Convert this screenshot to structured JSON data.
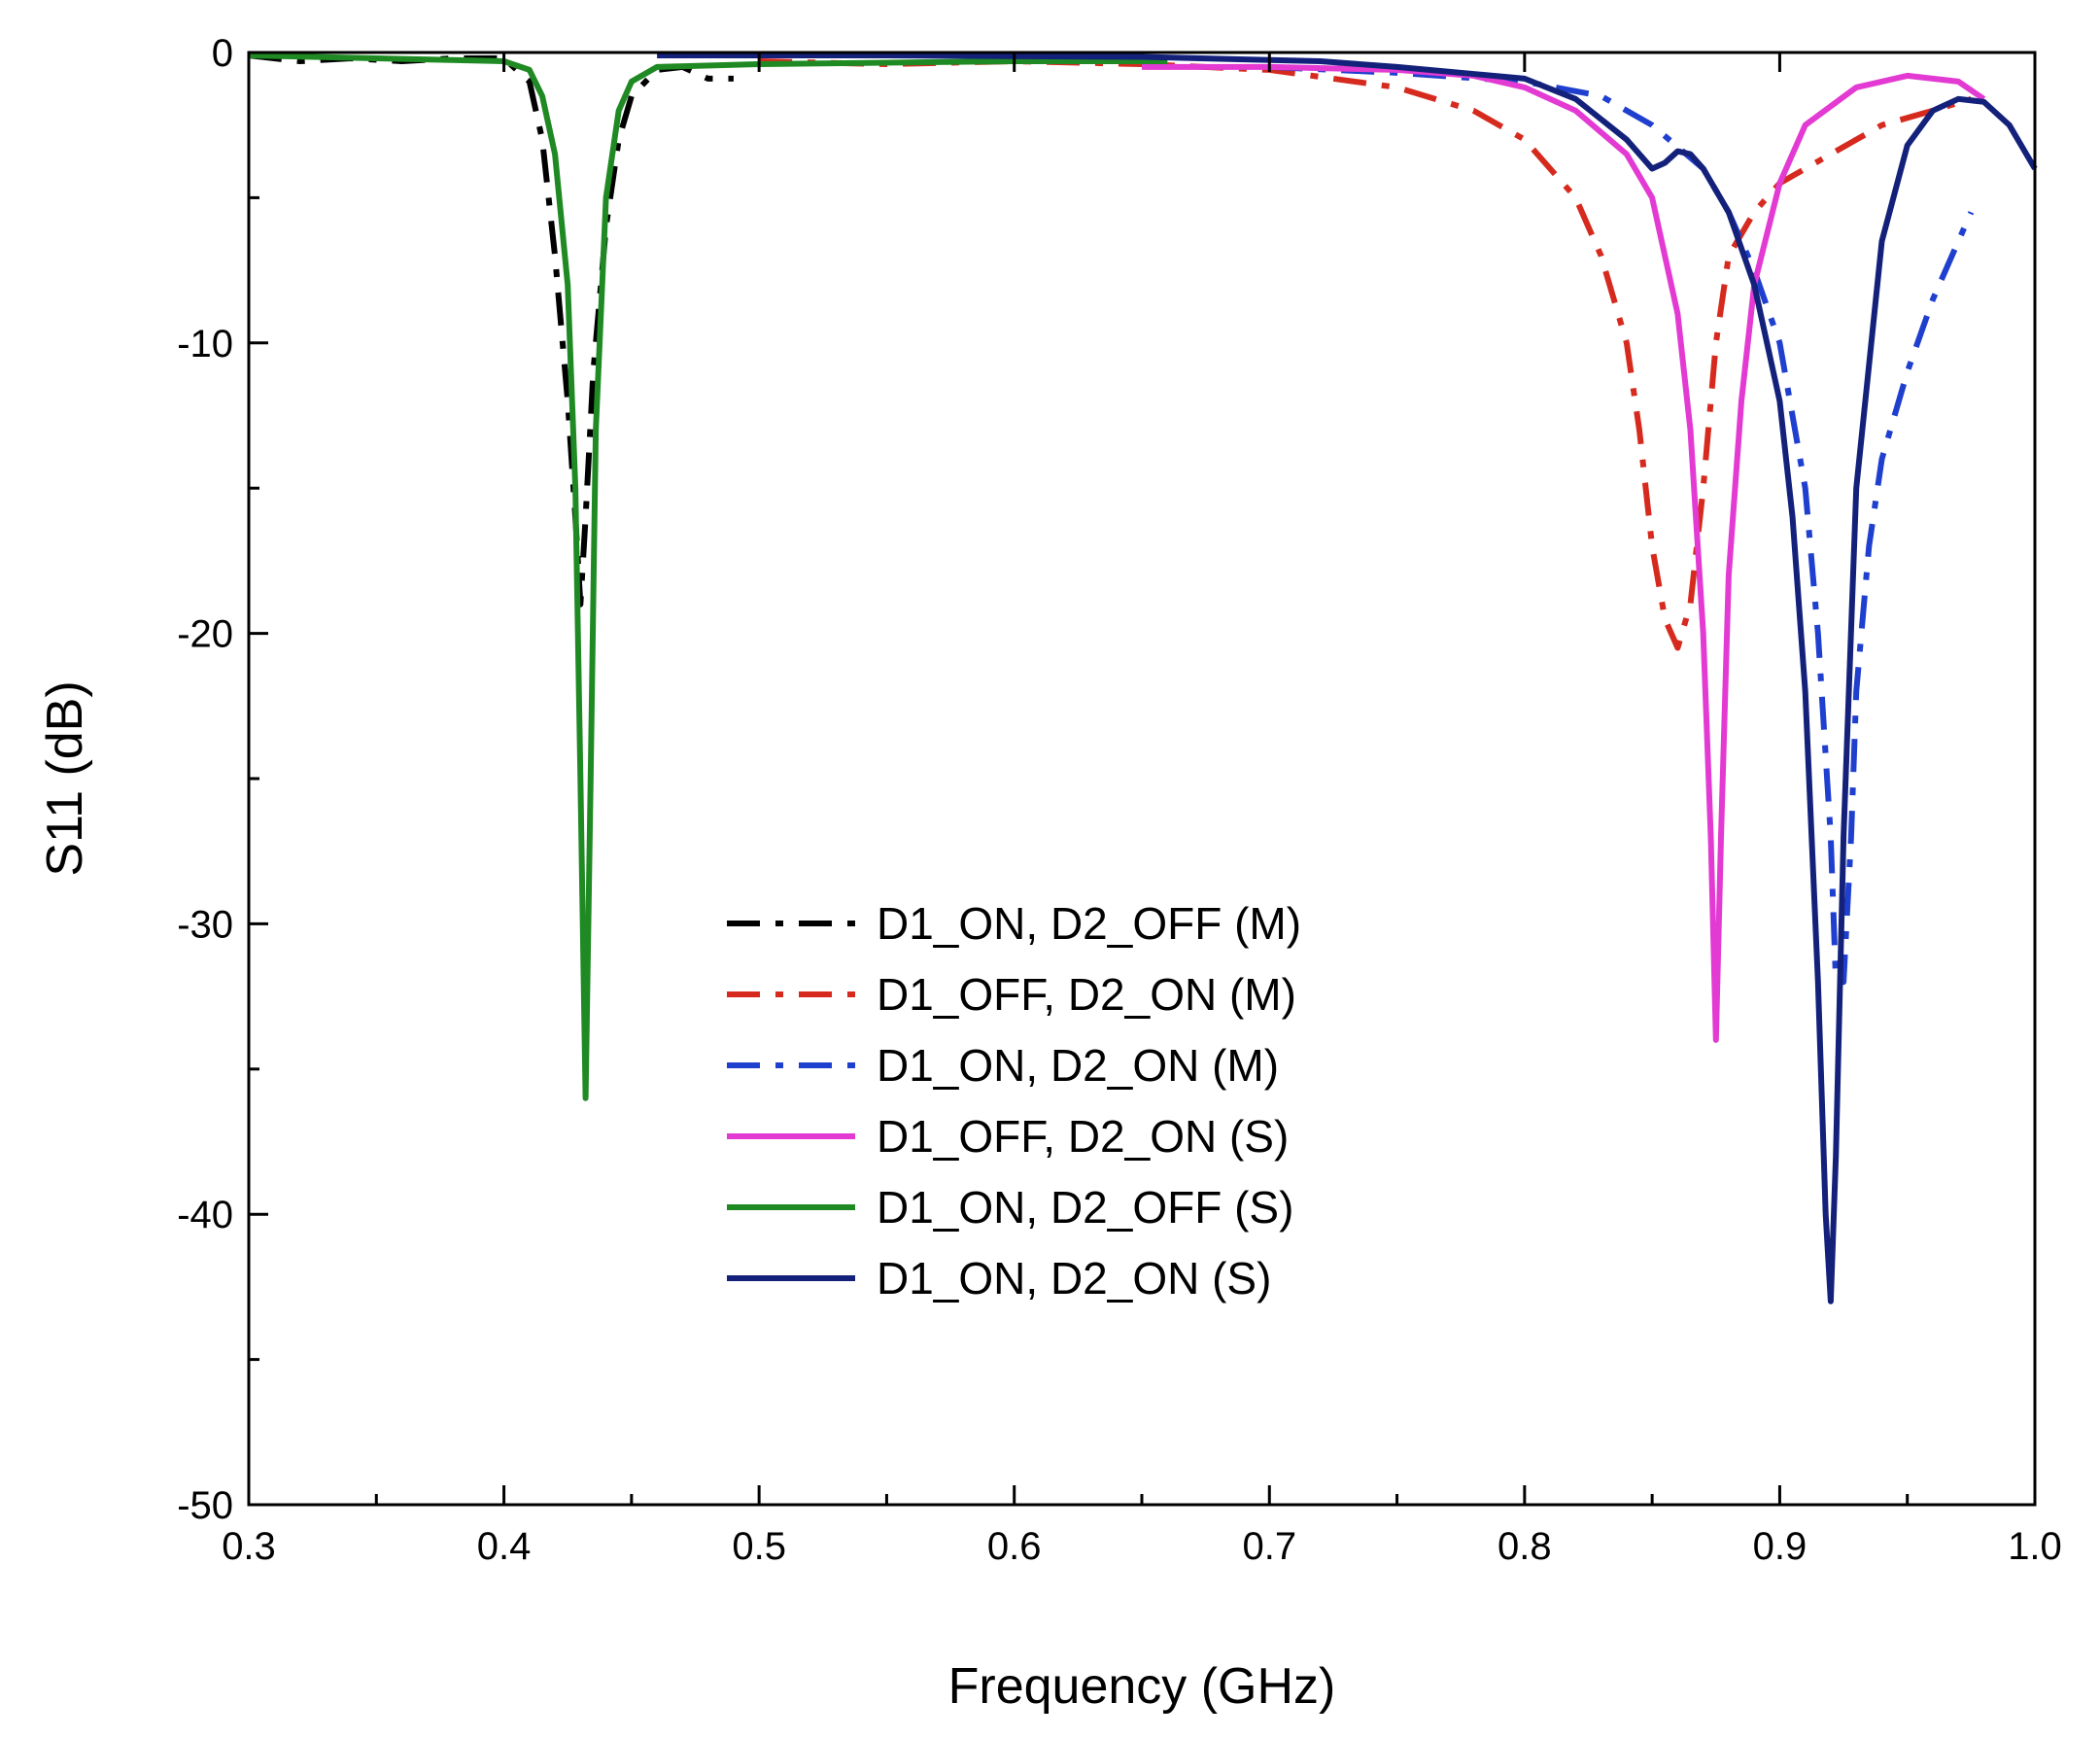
{
  "chart_data": {
    "type": "line",
    "title": "",
    "xlabel": "Frequency (GHz)",
    "ylabel": "S11 (dB)",
    "xlim": [
      0.3,
      1.0
    ],
    "ylim": [
      -50,
      0
    ],
    "x_ticks": [
      0.3,
      0.4,
      0.5,
      0.6,
      0.7,
      0.8,
      0.9,
      1.0
    ],
    "x_tick_labels": [
      "0.3",
      "0.4",
      "0.5",
      "0.6",
      "0.7",
      "0.8",
      "0.9",
      "1.0"
    ],
    "y_ticks": [
      0,
      -10,
      -20,
      -30,
      -40,
      -50
    ],
    "y_tick_labels": [
      "0",
      "-10",
      "-20",
      "-30",
      "-40",
      "-50"
    ],
    "grid": false,
    "legend_position": "center",
    "series": [
      {
        "name": "D1_ON, D2_OFF (M)",
        "color": "#000000",
        "style": "dashdot",
        "x": [
          0.3,
          0.32,
          0.34,
          0.36,
          0.38,
          0.4,
          0.41,
          0.415,
          0.42,
          0.425,
          0.428,
          0.43,
          0.432,
          0.435,
          0.44,
          0.445,
          0.45,
          0.46,
          0.47,
          0.48,
          0.49
        ],
        "y": [
          -0.1,
          -0.3,
          -0.2,
          -0.3,
          -0.2,
          -0.2,
          -1.0,
          -3.0,
          -7.0,
          -12.0,
          -16.0,
          -19.0,
          -16.0,
          -11.0,
          -6.0,
          -3.0,
          -1.5,
          -0.6,
          -0.5,
          -0.9,
          -0.9
        ]
      },
      {
        "name": "D1_OFF, D2_ON (M)",
        "color": "#d62a1e",
        "style": "dashdot",
        "x": [
          0.5,
          0.55,
          0.6,
          0.65,
          0.7,
          0.75,
          0.78,
          0.8,
          0.82,
          0.83,
          0.84,
          0.845,
          0.85,
          0.855,
          0.86,
          0.865,
          0.87,
          0.875,
          0.88,
          0.89,
          0.9,
          0.92,
          0.94,
          0.96,
          0.975
        ],
        "y": [
          -0.3,
          -0.4,
          -0.3,
          -0.4,
          -0.6,
          -1.2,
          -2.0,
          -3.0,
          -5.0,
          -7.0,
          -10.0,
          -13.0,
          -17.0,
          -19.5,
          -20.5,
          -19.0,
          -15.0,
          -10.0,
          -7.0,
          -5.5,
          -4.5,
          -3.5,
          -2.5,
          -2.0,
          -1.6
        ]
      },
      {
        "name": "D1_ON, D2_ON (M)",
        "color": "#1f3fcf",
        "style": "dashdot",
        "x": [
          0.7,
          0.75,
          0.8,
          0.83,
          0.85,
          0.87,
          0.88,
          0.89,
          0.9,
          0.91,
          0.915,
          0.92,
          0.922,
          0.925,
          0.928,
          0.93,
          0.935,
          0.94,
          0.95,
          0.96,
          0.97,
          0.975
        ],
        "y": [
          -0.5,
          -0.7,
          -1.0,
          -1.5,
          -2.5,
          -4.0,
          -5.5,
          -7.5,
          -10.0,
          -15.0,
          -20.0,
          -27.0,
          -32.0,
          -32.0,
          -27.0,
          -22.0,
          -17.0,
          -14.0,
          -11.0,
          -8.5,
          -6.5,
          -5.5
        ]
      },
      {
        "name": "D1_OFF, D2_ON (S)",
        "color": "#e23ad2",
        "style": "solid",
        "x": [
          0.65,
          0.7,
          0.75,
          0.78,
          0.8,
          0.82,
          0.84,
          0.85,
          0.86,
          0.865,
          0.87,
          0.873,
          0.875,
          0.877,
          0.88,
          0.885,
          0.89,
          0.9,
          0.91,
          0.93,
          0.95,
          0.97,
          0.98
        ],
        "y": [
          -0.5,
          -0.5,
          -0.6,
          -0.8,
          -1.2,
          -2.0,
          -3.5,
          -5.0,
          -9.0,
          -13.0,
          -20.0,
          -27.0,
          -34.0,
          -27.0,
          -18.0,
          -12.0,
          -8.0,
          -4.5,
          -2.5,
          -1.2,
          -0.8,
          -1.0,
          -1.6
        ]
      },
      {
        "name": "D1_ON, D2_OFF (S)",
        "color": "#1f8a23",
        "style": "solid",
        "x": [
          0.3,
          0.35,
          0.4,
          0.41,
          0.415,
          0.42,
          0.425,
          0.428,
          0.43,
          0.432,
          0.434,
          0.436,
          0.44,
          0.445,
          0.45,
          0.46,
          0.5,
          0.6,
          0.66
        ],
        "y": [
          -0.1,
          -0.2,
          -0.3,
          -0.6,
          -1.5,
          -3.5,
          -8.0,
          -15.0,
          -25.0,
          -36.0,
          -25.0,
          -13.0,
          -5.0,
          -2.0,
          -1.0,
          -0.5,
          -0.4,
          -0.3,
          -0.3
        ]
      },
      {
        "name": "D1_ON, D2_ON (S)",
        "color": "#13217a",
        "style": "solid",
        "x": [
          0.46,
          0.55,
          0.65,
          0.72,
          0.75,
          0.8,
          0.82,
          0.84,
          0.85,
          0.855,
          0.86,
          0.865,
          0.87,
          0.88,
          0.89,
          0.9,
          0.905,
          0.91,
          0.915,
          0.918,
          0.92,
          0.922,
          0.925,
          0.93,
          0.94,
          0.95,
          0.96,
          0.97,
          0.98,
          0.99,
          1.0
        ],
        "y": [
          -0.1,
          -0.1,
          -0.15,
          -0.3,
          -0.5,
          -0.9,
          -1.6,
          -3.0,
          -4.0,
          -3.8,
          -3.4,
          -3.5,
          -4.0,
          -5.5,
          -8.0,
          -12.0,
          -16.0,
          -22.0,
          -32.0,
          -40.0,
          -43.0,
          -38.0,
          -27.0,
          -15.0,
          -6.5,
          -3.2,
          -2.0,
          -1.6,
          -1.7,
          -2.5,
          -4.0
        ]
      }
    ]
  }
}
